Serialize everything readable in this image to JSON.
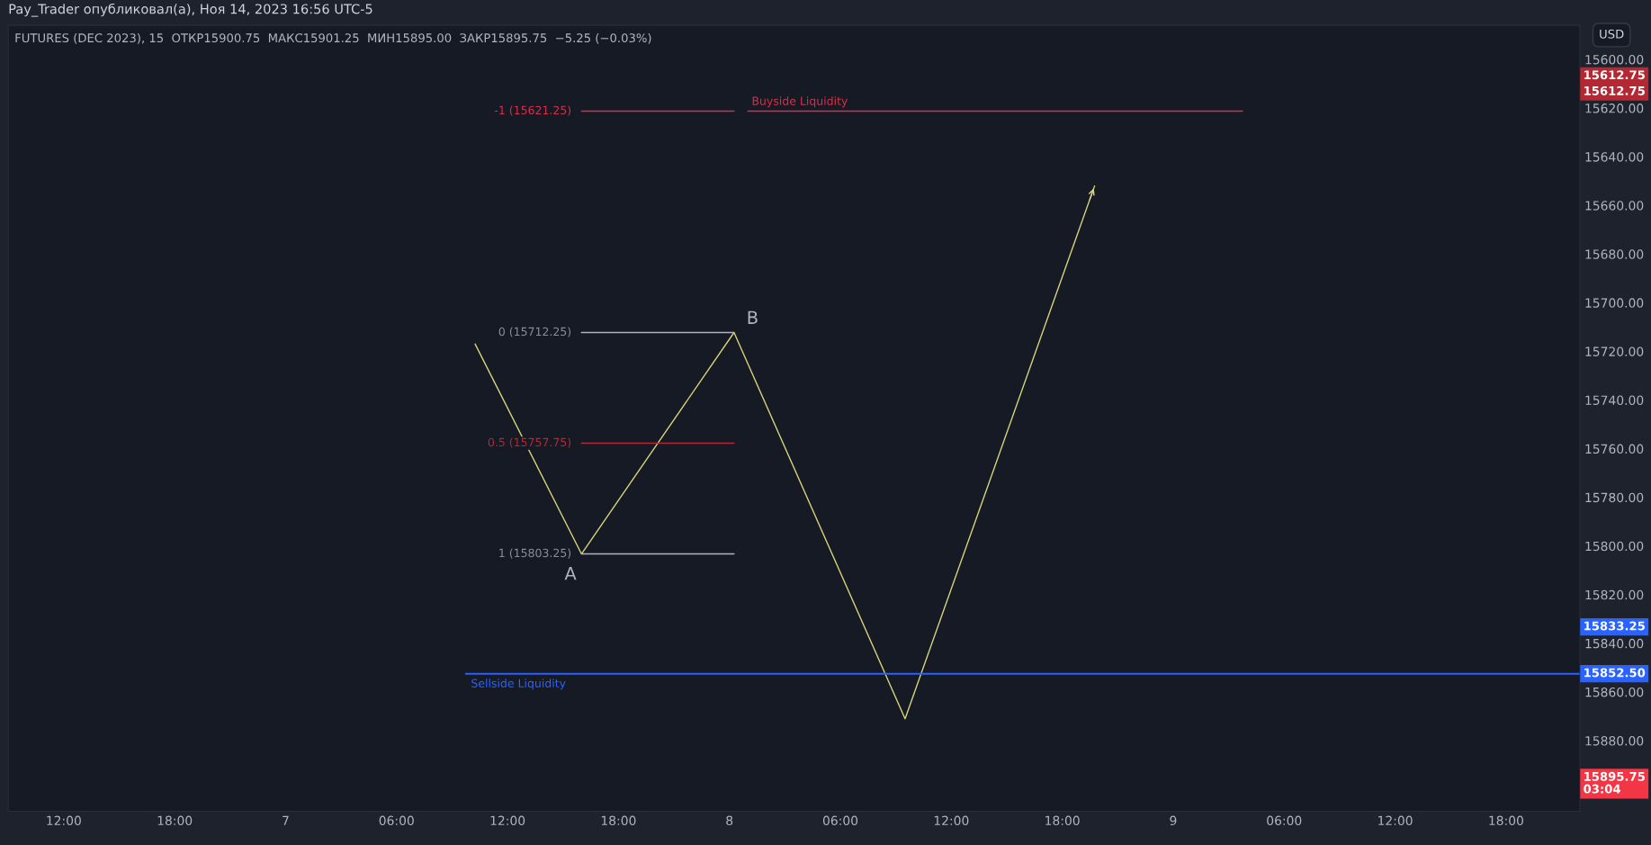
{
  "chart_data": {
    "type": "line",
    "title": "Pay_Trader опубликовал(а), Ноя 14, 2023 16:56 UTC-5",
    "subtitle": "FUTURES (DEC 2023), 15  ОТКР15900.75  МАКС15901.25  МИН15895.00  ЗАКР15895.75  −5.25 (−0.03%)",
    "series": [
      {
        "color": "#d8d47a",
        "x": [
          "2023-11-07T10:15",
          "2023-11-07T16:00",
          "2023-11-08T00:15",
          "2023-11-08T09:30",
          "2023-11-08T19:45"
        ],
        "values": [
          15717,
          15803.25,
          15712.25,
          15871,
          15652
        ]
      },
      {
        "color": "#b2b5be",
        "x": [
          "2023-11-07T16:00",
          "2023-11-08T00:15"
        ],
        "values": [
          15712.25,
          15712.25
        ]
      },
      {
        "color": "#b22833",
        "x": [
          "2023-11-07T16:00",
          "2023-11-08T00:15"
        ],
        "values": [
          15757.75,
          15757.75
        ]
      },
      {
        "color": "#b2b5be",
        "x": [
          "2023-11-07T16:00",
          "2023-11-08T00:15"
        ],
        "values": [
          15803.25,
          15803.25
        ]
      },
      {
        "color": "#d3304a",
        "x": [
          "2023-11-07T16:00",
          "2023-11-08T00:15"
        ],
        "values": [
          15621.25,
          15621.25
        ]
      },
      {
        "color": "#d3304a",
        "x": [
          "2023-11-08T01:00",
          "2023-11-09T03:45"
        ],
        "values": [
          15621.25,
          15621.25
        ]
      },
      {
        "color": "#2962ff",
        "x": [
          "2023-11-07T09:45",
          "2023-11-09T22:00"
        ],
        "values": [
          15852.5,
          15852.5
        ]
      }
    ],
    "annotations": [
      {
        "text": "-1 (15621.25)",
        "x": "2023-11-07T16:00",
        "y": 15621.25
      },
      {
        "text": "Buyside Liquidity",
        "x": "2023-11-08T01:00",
        "y": 15621.25
      },
      {
        "text": "0 (15712.25)",
        "x": "2023-11-07T16:00",
        "y": 15712.25
      },
      {
        "text": "0.5 (15757.75)",
        "x": "2023-11-07T16:00",
        "y": 15757.75
      },
      {
        "text": "1 (15803.25)",
        "x": "2023-11-07T16:00",
        "y": 15803.25
      },
      {
        "text": "A",
        "x": "2023-11-07T16:00",
        "y": 15803.25
      },
      {
        "text": "B",
        "x": "2023-11-08T00:15",
        "y": 15712.25
      },
      {
        "text": "Sellside Liquidity",
        "x": "2023-11-07T09:45",
        "y": 15852.5
      },
      "USD",
      "15612.75",
      "15612.75",
      "15833.25",
      "15852.50",
      "15895.75\n03:04"
    ],
    "xlim": [
      "2023-11-06T09:00",
      "2023-11-09T22:00"
    ],
    "ylim": [
      15909,
      15586
    ],
    "xticks": [
      {
        "value": "2023-11-06T12:00",
        "label": "12:00"
      },
      {
        "value": "2023-11-06T18:00",
        "label": "18:00"
      },
      {
        "value": "2023-11-07",
        "label": "7"
      },
      {
        "value": "2023-11-07T06:00",
        "label": "06:00"
      },
      {
        "value": "2023-11-07T12:00",
        "label": "12:00"
      },
      {
        "value": "2023-11-07T18:00",
        "label": "18:00"
      },
      {
        "value": "2023-11-08",
        "label": "8"
      },
      {
        "value": "2023-11-08T06:00",
        "label": "06:00"
      },
      {
        "value": "2023-11-08T12:00",
        "label": "12:00"
      },
      {
        "value": "2023-11-08T18:00",
        "label": "18:00"
      },
      {
        "value": "2023-11-09",
        "label": "9"
      },
      {
        "value": "2023-11-09T06:00",
        "label": "06:00"
      },
      {
        "value": "2023-11-09T12:00",
        "label": "12:00"
      },
      {
        "value": "2023-11-09T18:00",
        "label": "18:00"
      }
    ],
    "yticks": [
      {
        "value": 15600,
        "label": "15600.00"
      },
      {
        "value": 15620,
        "label": "15620.00"
      },
      {
        "value": 15640,
        "label": "15640.00"
      },
      {
        "value": 15660,
        "label": "15660.00"
      },
      {
        "value": 15680,
        "label": "15680.00"
      },
      {
        "value": 15700,
        "label": "15700.00"
      },
      {
        "value": 15720,
        "label": "15720.00"
      },
      {
        "value": 15740,
        "label": "15740.00"
      },
      {
        "value": 15760,
        "label": "15760.00"
      },
      {
        "value": 15780,
        "label": "15780.00"
      },
      {
        "value": 15800,
        "label": "15800.00"
      },
      {
        "value": 15820,
        "label": "15820.00"
      },
      {
        "value": 15840,
        "label": "15840.00"
      },
      {
        "value": 15860,
        "label": "15860.00"
      },
      {
        "value": 15880,
        "label": "15880.00"
      }
    ],
    "grid": false,
    "legend": false
  }
}
